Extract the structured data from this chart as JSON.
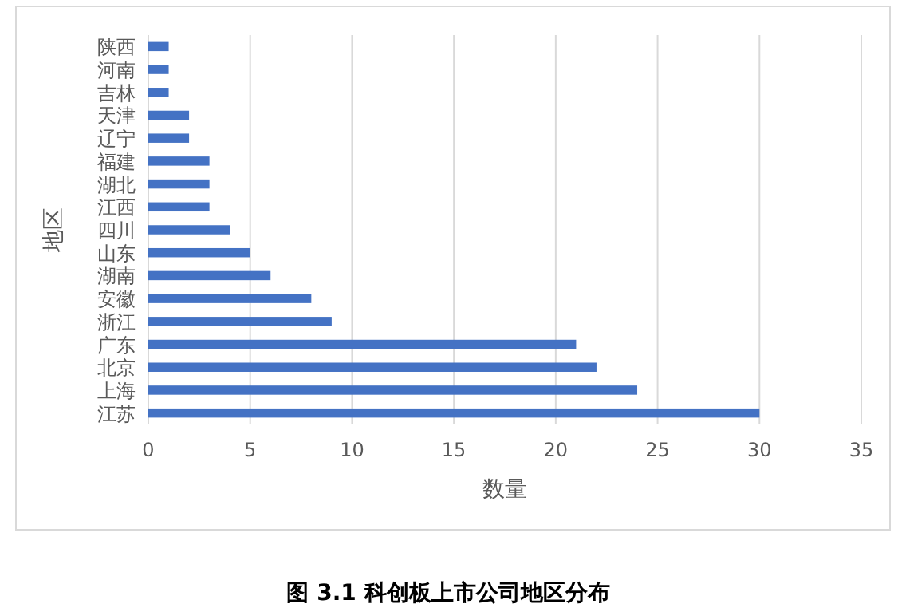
{
  "chart_data": {
    "type": "bar",
    "orientation": "horizontal",
    "title": "图 3.1  科创板上市公司地区分布",
    "xlabel": "数量",
    "ylabel": "地区",
    "categories": [
      "陕西",
      "河南",
      "吉林",
      "天津",
      "辽宁",
      "福建",
      "湖北",
      "江西",
      "四川",
      "山东",
      "湖南",
      "安徽",
      "浙江",
      "广东",
      "北京",
      "上海",
      "江苏"
    ],
    "values": [
      1,
      1,
      1,
      2,
      2,
      3,
      3,
      3,
      4,
      5,
      6,
      8,
      9,
      21,
      22,
      24,
      30
    ],
    "color": "#4472c4",
    "xlim": [
      0,
      35
    ],
    "xticks": [
      0,
      5,
      10,
      15,
      20,
      25,
      30,
      35
    ],
    "grid": "x"
  }
}
